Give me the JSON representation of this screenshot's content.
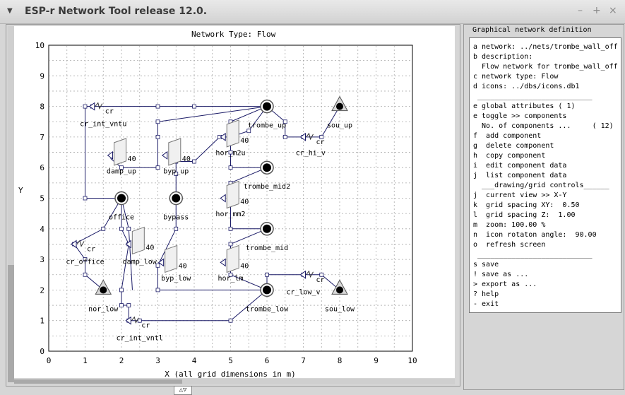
{
  "window": {
    "title": "ESP-r Network Tool release 12.0.",
    "menu_glyph": "▼",
    "btn_min": "–",
    "btn_max": "+",
    "btn_close": "×"
  },
  "canvas": {
    "title": "Network Type: Flow",
    "x_label": "X (all grid dimensions in m)",
    "y_label": "Y",
    "x_ticks": [
      "0",
      "1",
      "2",
      "3",
      "4",
      "5",
      "6",
      "7",
      "8",
      "9",
      "10"
    ],
    "y_ticks": [
      "0",
      "1",
      "2",
      "3",
      "4",
      "5",
      "6",
      "7",
      "8",
      "9",
      "10"
    ],
    "bottom_handle": "△▽",
    "nodes": [
      {
        "label": "trombe_up",
        "type": "internal"
      },
      {
        "label": "sou_up",
        "type": "boundary"
      },
      {
        "label": "office",
        "type": "internal"
      },
      {
        "label": "bypass",
        "type": "internal"
      },
      {
        "label": "trombe_mid2",
        "type": "internal"
      },
      {
        "label": "trombe_mid",
        "type": "internal"
      },
      {
        "label": "trombe_low",
        "type": "internal"
      },
      {
        "label": "nor_low",
        "type": "boundary"
      },
      {
        "label": "sou_low",
        "type": "boundary"
      }
    ],
    "components": [
      {
        "label": "cr_int_vntu",
        "kind": "cr"
      },
      {
        "label": "cr_hi_v",
        "kind": "cr"
      },
      {
        "label": "damp_up",
        "kind": "40"
      },
      {
        "label": "byp_up",
        "kind": "40"
      },
      {
        "label": "hor_m2u",
        "kind": "40"
      },
      {
        "label": "hor_mm2",
        "kind": "40"
      },
      {
        "label": "cr_office",
        "kind": "cr"
      },
      {
        "label": "damp_low",
        "kind": "40"
      },
      {
        "label": "byp_low",
        "kind": "40"
      },
      {
        "label": "hor_lm",
        "kind": "40"
      },
      {
        "label": "cr_low_v",
        "kind": "cr"
      },
      {
        "label": "cr_int_vntl",
        "kind": "cr"
      }
    ]
  },
  "panel": {
    "title": "Graphical network definition",
    "lines": [
      "a network: ../nets/trombe_wall_off",
      "b description:",
      "  Flow network for trombe_wall_off",
      "c network type: Flow",
      "d icons: ../dbs/icons.db1",
      " ___________________________",
      "e global attributes ( 1)",
      "e toggle >> components",
      "  No. of components ...     ( 12)",
      "f  add component",
      "g  delete component",
      "h  copy component",
      "i  edit component data",
      "j  list component data",
      "  ___drawing/grid controls______",
      "j  current view >> X-Y",
      "k  grid spacing XY:  0.50",
      "l  grid spacing Z:  1.00",
      "m  zoom: 100.00 %",
      "n  icon rotaton angle:  90.00",
      "o  refresh screen",
      " ___________________________",
      "s save",
      "! save as ...",
      "> export as ...",
      "? help",
      "- exit"
    ]
  }
}
